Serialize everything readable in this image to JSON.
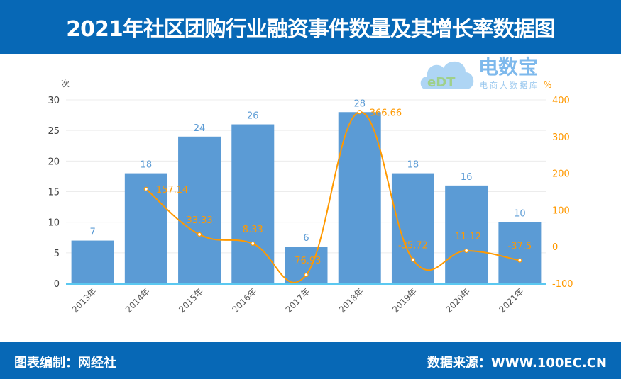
{
  "title": "2021年社区团购行业融资事件数量及其增长率数据图",
  "footer": {
    "left": "图表编制：网经社",
    "right": "数据来源：WWW.100EC.CN"
  },
  "logo": {
    "name": "电数宝",
    "tagline": "电商大数据库",
    "mark": "eDT"
  },
  "colors": {
    "header": "#0768b6",
    "bar": "#5b9bd5",
    "line": "#ff9900",
    "bar_label": "#5b9bd5",
    "line_label": "#ff9900"
  },
  "chart_data": {
    "type": "bar+line",
    "categories": [
      "2013年",
      "2014年",
      "2015年",
      "2016年",
      "2017年",
      "2018年",
      "2019年",
      "2020年",
      "2021年"
    ],
    "series": [
      {
        "type": "bar",
        "axis": "left",
        "values": [
          7,
          18,
          24,
          26,
          6,
          28,
          18,
          16,
          10
        ]
      },
      {
        "type": "line",
        "axis": "right",
        "smooth": true,
        "values": [
          null,
          157.14,
          33.33,
          8.33,
          -76.93,
          366.66,
          -35.72,
          -11.12,
          -37.5
        ]
      }
    ],
    "left_axis": {
      "label": "次",
      "ylim": [
        0,
        30
      ],
      "ticks": [
        0,
        5,
        10,
        15,
        20,
        25,
        30
      ]
    },
    "right_axis": {
      "label": "%",
      "ylim": [
        -100,
        400
      ],
      "ticks": [
        -100,
        0,
        100,
        200,
        300,
        400
      ]
    },
    "grid": true
  }
}
